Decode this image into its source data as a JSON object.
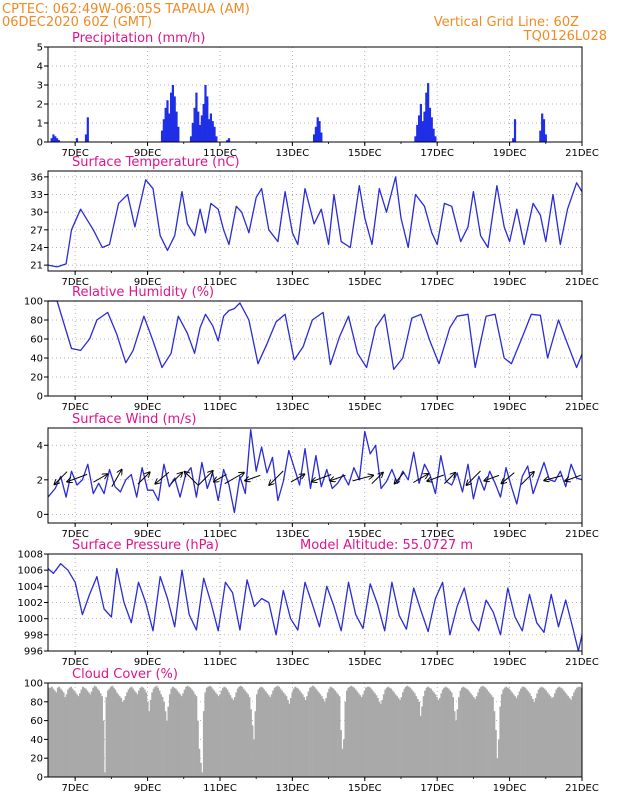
{
  "header": {
    "left_line1": "CPTEC:  062:49W-06:05S  TAPAUA (AM)",
    "left_line2": "06DEC2020 60Z (GMT)",
    "right_line1": "Vertical Grid Line: 60Z",
    "right_line2": "TQ0126L028"
  },
  "colors": {
    "line": "#2b2bd6",
    "bar": "#1f2fe6",
    "cloud": "#a9a9a9",
    "header": "#f08a24",
    "title": "#e0148c",
    "arrow": "#000000"
  },
  "chart_data": [
    {
      "id": "precip",
      "type": "bar",
      "title": "Precipitation (mm/h)",
      "ylim": [
        0,
        5
      ],
      "yticks": [
        0,
        1,
        2,
        3,
        4,
        5
      ],
      "xlim_days": [
        6.25,
        21
      ],
      "xticks": [
        "7DEC",
        "9DEC",
        "11DEC",
        "13DEC",
        "15DEC",
        "17DEC",
        "19DEC",
        "21DEC"
      ],
      "x_days": [
        6.35,
        6.4,
        6.45,
        6.5,
        6.55,
        7.05,
        7.3,
        7.35,
        9.4,
        9.45,
        9.5,
        9.55,
        9.6,
        9.65,
        9.7,
        9.75,
        9.8,
        9.85,
        10.2,
        10.25,
        10.3,
        10.35,
        10.4,
        10.45,
        10.5,
        10.55,
        10.6,
        10.65,
        10.7,
        10.75,
        10.8,
        10.85,
        10.9,
        11.2,
        11.25,
        13.6,
        13.65,
        13.7,
        13.75,
        13.8,
        16.4,
        16.45,
        16.5,
        16.55,
        16.6,
        16.65,
        16.7,
        16.75,
        16.8,
        16.85,
        16.9,
        16.95,
        19.1,
        19.15,
        19.85,
        19.9,
        19.95,
        20.0
      ],
      "values": [
        0.2,
        0.4,
        0.3,
        0.2,
        0.1,
        0.2,
        0.4,
        1.3,
        0.6,
        1.2,
        1.8,
        2.2,
        1.5,
        2.6,
        3.0,
        2.4,
        1.6,
        0.8,
        0.3,
        1.0,
        1.8,
        2.6,
        1.6,
        0.9,
        1.4,
        2.0,
        3.0,
        2.4,
        1.2,
        1.5,
        1.1,
        0.8,
        0.3,
        0.1,
        0.2,
        0.4,
        0.8,
        1.3,
        1.1,
        0.5,
        0.3,
        0.9,
        1.4,
        2.0,
        1.1,
        1.6,
        2.6,
        3.1,
        1.8,
        1.3,
        0.7,
        0.3,
        0.2,
        1.2,
        0.6,
        1.5,
        1.2,
        0.4
      ]
    },
    {
      "id": "temp",
      "type": "line",
      "title": "Surface Temperature (nC)",
      "ylim": [
        20,
        37
      ],
      "yticks": [
        21,
        24,
        27,
        30,
        33,
        36
      ],
      "xlim_days": [
        6.25,
        21
      ],
      "xticks": [
        "7DEC",
        "9DEC",
        "11DEC",
        "13DEC",
        "15DEC",
        "17DEC",
        "19DEC",
        "21DEC"
      ],
      "x_days": [
        6.25,
        6.5,
        6.75,
        6.9,
        7.15,
        7.5,
        7.75,
        7.95,
        8.2,
        8.45,
        8.65,
        8.95,
        9.15,
        9.35,
        9.55,
        9.75,
        9.95,
        10.1,
        10.3,
        10.45,
        10.6,
        10.75,
        10.95,
        11.1,
        11.25,
        11.45,
        11.6,
        11.8,
        12.0,
        12.15,
        12.35,
        12.6,
        12.8,
        13.0,
        13.15,
        13.35,
        13.6,
        13.8,
        14.0,
        14.15,
        14.35,
        14.6,
        14.85,
        15.0,
        15.2,
        15.4,
        15.6,
        15.85,
        16.0,
        16.2,
        16.4,
        16.65,
        16.85,
        17.0,
        17.2,
        17.4,
        17.65,
        17.85,
        18.0,
        18.2,
        18.4,
        18.65,
        18.85,
        19.0,
        19.2,
        19.4,
        19.65,
        19.85,
        20.0,
        20.2,
        20.4,
        20.6,
        20.85,
        21.0
      ],
      "values": [
        21.0,
        20.7,
        21.2,
        27.0,
        30.5,
        27.0,
        24.0,
        24.5,
        31.5,
        33.0,
        27.5,
        35.5,
        34.0,
        26.0,
        23.5,
        26.0,
        33.5,
        28.0,
        26.0,
        30.5,
        26.5,
        31.5,
        30.5,
        27.0,
        24.5,
        31.0,
        30.0,
        26.5,
        32.5,
        34.0,
        27.0,
        25.0,
        33.5,
        26.5,
        24.5,
        34.0,
        28.0,
        30.5,
        24.5,
        33.0,
        25.0,
        24.0,
        34.5,
        29.0,
        24.5,
        34.0,
        30.0,
        36.0,
        29.0,
        24.0,
        33.0,
        31.0,
        26.5,
        24.5,
        31.5,
        31.0,
        25.0,
        27.5,
        33.5,
        26.0,
        24.0,
        34.5,
        27.5,
        25.0,
        30.5,
        24.5,
        31.5,
        29.5,
        25.0,
        33.0,
        24.5,
        30.5,
        35.0,
        33.5
      ]
    },
    {
      "id": "rh",
      "type": "line",
      "title": "Relative Humidity (%)",
      "ylim": [
        0,
        100
      ],
      "yticks": [
        0,
        20,
        40,
        60,
        80,
        100
      ],
      "xlim_days": [
        6.25,
        21
      ],
      "xticks": [
        "7DEC",
        "9DEC",
        "11DEC",
        "13DEC",
        "15DEC",
        "17DEC",
        "19DEC",
        "21DEC"
      ],
      "x_days": [
        6.25,
        6.5,
        6.7,
        6.9,
        7.15,
        7.4,
        7.6,
        7.9,
        8.15,
        8.4,
        8.6,
        8.9,
        9.15,
        9.4,
        9.65,
        9.85,
        10.1,
        10.3,
        10.45,
        10.6,
        10.8,
        10.95,
        11.1,
        11.25,
        11.4,
        11.55,
        11.8,
        12.05,
        12.3,
        12.55,
        12.8,
        13.05,
        13.3,
        13.55,
        13.85,
        14.05,
        14.3,
        14.55,
        14.8,
        15.05,
        15.3,
        15.55,
        15.8,
        16.05,
        16.3,
        16.55,
        16.8,
        17.05,
        17.35,
        17.55,
        17.85,
        18.05,
        18.35,
        18.6,
        18.85,
        19.05,
        19.35,
        19.6,
        19.85,
        20.05,
        20.35,
        20.6,
        20.85,
        21.0
      ],
      "values": [
        100,
        100,
        75,
        50,
        48,
        60,
        80,
        88,
        65,
        35,
        48,
        84,
        58,
        30,
        45,
        84,
        66,
        45,
        72,
        86,
        74,
        58,
        84,
        90,
        92,
        98,
        80,
        34,
        55,
        78,
        86,
        38,
        52,
        80,
        88,
        33,
        62,
        84,
        45,
        30,
        72,
        86,
        28,
        40,
        82,
        86,
        58,
        34,
        72,
        84,
        86,
        30,
        84,
        86,
        40,
        34,
        62,
        86,
        85,
        40,
        80,
        55,
        30,
        44
      ]
    },
    {
      "id": "wind",
      "type": "line",
      "title": "Surface Wind (m/s)",
      "ylim": [
        -0.5,
        5
      ],
      "yticks": [
        0,
        2,
        4
      ],
      "xlim_days": [
        6.25,
        21
      ],
      "xticks": [
        "7DEC",
        "9DEC",
        "11DEC",
        "13DEC",
        "15DEC",
        "17DEC",
        "19DEC",
        "21DEC"
      ],
      "x_days": [
        6.25,
        6.45,
        6.6,
        6.75,
        6.9,
        7.05,
        7.2,
        7.35,
        7.5,
        7.65,
        7.8,
        7.95,
        8.1,
        8.25,
        8.4,
        8.55,
        8.7,
        8.85,
        9.0,
        9.15,
        9.3,
        9.45,
        9.6,
        9.75,
        9.9,
        10.05,
        10.2,
        10.35,
        10.5,
        10.65,
        10.8,
        10.95,
        11.1,
        11.25,
        11.4,
        11.55,
        11.7,
        11.85,
        12.0,
        12.15,
        12.3,
        12.45,
        12.6,
        12.75,
        12.9,
        13.05,
        13.2,
        13.35,
        13.5,
        13.65,
        13.8,
        13.95,
        14.1,
        14.25,
        14.4,
        14.55,
        14.7,
        14.85,
        15.0,
        15.15,
        15.3,
        15.45,
        15.6,
        15.75,
        15.9,
        16.05,
        16.2,
        16.35,
        16.5,
        16.65,
        16.8,
        16.95,
        17.1,
        17.25,
        17.4,
        17.55,
        17.7,
        17.85,
        18.0,
        18.15,
        18.3,
        18.45,
        18.6,
        18.75,
        18.9,
        19.05,
        19.2,
        19.35,
        19.5,
        19.65,
        19.8,
        19.95,
        20.1,
        20.25,
        20.4,
        20.55,
        20.7,
        20.85,
        21.0
      ],
      "values": [
        1.0,
        1.5,
        2.2,
        1.0,
        2.5,
        1.7,
        2.0,
        2.9,
        1.2,
        1.8,
        1.2,
        2.6,
        1.6,
        1.3,
        2.0,
        2.3,
        1.0,
        2.7,
        1.4,
        1.4,
        0.8,
        2.9,
        1.6,
        2.1,
        1.0,
        2.3,
        2.7,
        1.0,
        3.0,
        1.5,
        2.4,
        0.8,
        2.6,
        1.7,
        0.1,
        2.2,
        1.2,
        4.9,
        2.5,
        3.9,
        2.4,
        3.3,
        0.8,
        1.9,
        3.7,
        2.7,
        1.7,
        3.8,
        1.5,
        3.4,
        1.6,
        2.6,
        1.5,
        1.8,
        2.3,
        1.7,
        2.7,
        2.0,
        4.8,
        3.5,
        4.0,
        1.5,
        1.9,
        2.6,
        1.8,
        2.5,
        2.0,
        3.6,
        1.8,
        2.9,
        2.3,
        1.2,
        3.4,
        1.9,
        1.7,
        2.4,
        1.3,
        2.9,
        0.9,
        2.2,
        1.4,
        2.5,
        1.8,
        1.0,
        2.7,
        1.6,
        0.6,
        2.2,
        2.8,
        1.2,
        2.1,
        3.0,
        2.0,
        1.9,
        2.5,
        1.6,
        2.9,
        2.1,
        2.0
      ],
      "arrows_days": [
        6.6,
        7.05,
        7.7,
        8.15,
        8.9,
        9.4,
        9.8,
        10.2,
        10.6,
        11.0,
        11.4,
        11.9,
        12.55,
        13.15,
        13.8,
        14.25,
        14.95,
        15.35,
        15.95,
        16.55,
        16.95,
        17.35,
        18.0,
        18.5,
        18.95,
        19.5,
        20.2,
        20.75
      ],
      "arrow_dir_deg": [
        225,
        200,
        30,
        60,
        45,
        220,
        45,
        135,
        45,
        210,
        30,
        200,
        225,
        30,
        200,
        200,
        15,
        45,
        230,
        30,
        200,
        45,
        225,
        200,
        220,
        45,
        195,
        200
      ],
      "arrow_speed": [
        1.8,
        2.5,
        1.5,
        2.2,
        1.6,
        1.8,
        1.5,
        2.0,
        2.4,
        1.2,
        2.7,
        1.5,
        2.2,
        1.4,
        2.4,
        1.5,
        2.5,
        1.4,
        1.2,
        1.7,
        1.8,
        1.3,
        2.2,
        1.4,
        1.6,
        1.8,
        2.0,
        1.6
      ]
    },
    {
      "id": "press",
      "type": "line",
      "title": "Surface Pressure (hPa)",
      "subtitle": "Model Altitude: 55.0727 m",
      "ylim": [
        996,
        1008
      ],
      "yticks": [
        996,
        998,
        1000,
        1002,
        1004,
        1006,
        1008
      ],
      "xlim_days": [
        6.25,
        21
      ],
      "xticks": [
        "7DEC",
        "9DEC",
        "11DEC",
        "13DEC",
        "15DEC",
        "17DEC",
        "19DEC",
        "21DEC"
      ],
      "x_days": [
        6.25,
        6.4,
        6.6,
        6.8,
        7.0,
        7.2,
        7.4,
        7.6,
        7.8,
        8.0,
        8.15,
        8.35,
        8.55,
        8.75,
        8.95,
        9.15,
        9.35,
        9.55,
        9.75,
        9.95,
        10.15,
        10.35,
        10.55,
        10.75,
        10.95,
        11.15,
        11.35,
        11.55,
        11.75,
        11.95,
        12.15,
        12.35,
        12.55,
        12.75,
        12.95,
        13.15,
        13.35,
        13.55,
        13.75,
        13.95,
        14.15,
        14.35,
        14.55,
        14.75,
        14.95,
        15.15,
        15.35,
        15.55,
        15.75,
        15.95,
        16.15,
        16.35,
        16.55,
        16.75,
        16.95,
        17.15,
        17.35,
        17.55,
        17.75,
        17.95,
        18.15,
        18.35,
        18.55,
        18.75,
        18.95,
        19.15,
        19.35,
        19.55,
        19.75,
        19.95,
        20.15,
        20.35,
        20.55,
        20.75,
        20.9,
        21.0
      ],
      "values": [
        1006.2,
        1005.6,
        1006.8,
        1006.0,
        1004.5,
        1000.5,
        1003.0,
        1005.2,
        1001.2,
        1000.2,
        1006.2,
        1002.0,
        999.5,
        1004.5,
        1002.0,
        998.5,
        1005.2,
        1002.5,
        999.0,
        1006.0,
        1000.5,
        998.6,
        1005.0,
        1002.0,
        998.5,
        1004.5,
        1003.2,
        998.6,
        1004.8,
        1001.5,
        1002.5,
        1002.0,
        998.0,
        1003.5,
        1000.0,
        998.6,
        1004.5,
        1001.8,
        999.0,
        1004.0,
        1001.5,
        998.5,
        1004.5,
        1000.5,
        998.8,
        1004.3,
        1001.8,
        998.5,
        1004.5,
        1000.4,
        998.7,
        1003.8,
        1001.0,
        998.4,
        1002.5,
        1004.5,
        998.0,
        1001.5,
        1003.8,
        999.8,
        998.5,
        1002.3,
        1000.8,
        998.0,
        1003.8,
        1000.2,
        998.5,
        1003.0,
        999.5,
        998.3,
        1003.0,
        999.0,
        1002.3,
        998.8,
        996.0,
        998.0
      ]
    },
    {
      "id": "cloud",
      "type": "bar",
      "title": "Cloud Cover (%)",
      "ylim": [
        0,
        100
      ],
      "yticks": [
        0,
        20,
        40,
        60,
        80,
        100
      ],
      "xlim_days": [
        6.25,
        21
      ],
      "xticks": [
        "7DEC",
        "9DEC",
        "11DEC",
        "13DEC",
        "15DEC",
        "17DEC",
        "19DEC",
        "21DEC"
      ],
      "values": [
        95,
        95,
        96,
        94,
        92,
        90,
        95,
        96,
        94,
        92,
        90,
        85,
        88,
        93,
        95,
        96,
        94,
        92,
        90,
        88,
        86,
        89,
        93,
        96,
        95,
        94,
        92,
        90,
        88,
        91,
        95,
        97,
        96,
        94,
        92,
        89,
        86,
        60,
        5,
        85,
        92,
        94,
        96,
        97,
        95,
        93,
        90,
        88,
        86,
        84,
        80,
        82,
        86,
        90,
        93,
        95,
        96,
        94,
        92,
        90,
        88,
        92,
        95,
        96,
        95,
        93,
        90,
        80,
        70,
        82,
        90,
        94,
        96,
        97,
        95,
        92,
        88,
        85,
        80,
        70,
        60,
        75,
        88,
        94,
        96,
        95,
        94,
        92,
        90,
        88,
        86,
        89,
        93,
        96,
        97,
        96,
        95,
        93,
        91,
        88,
        86,
        60,
        30,
        15,
        5,
        70,
        90,
        95,
        96,
        97,
        96,
        94,
        92,
        90,
        88,
        86,
        88,
        92,
        95,
        96,
        95,
        93,
        90,
        87,
        84,
        82,
        85,
        90,
        94,
        96,
        97,
        96,
        94,
        92,
        90,
        88,
        85,
        72,
        55,
        40,
        70,
        88,
        93,
        95,
        96,
        95,
        93,
        91,
        89,
        87,
        85,
        88,
        92,
        95,
        96,
        97,
        96,
        94,
        92,
        90,
        88,
        86,
        82,
        78,
        84,
        90,
        94,
        96,
        95,
        94,
        92,
        90,
        88,
        85,
        82,
        86,
        91,
        95,
        96,
        97,
        96,
        94,
        92,
        90,
        88,
        86,
        83,
        80,
        84,
        90,
        94,
        96,
        95,
        94,
        92,
        90,
        88,
        86,
        50,
        30,
        40,
        80,
        92,
        95,
        96,
        97,
        96,
        95,
        93,
        91,
        89,
        87,
        85,
        88,
        92,
        95,
        96,
        96,
        95,
        93,
        91,
        89,
        87,
        84,
        80,
        78,
        82,
        88,
        93,
        95,
        96,
        95,
        94,
        92,
        90,
        88,
        86,
        84,
        82,
        85,
        90,
        94,
        96,
        97,
        96,
        95,
        93,
        91,
        89,
        86,
        83,
        80,
        65,
        75,
        86,
        92,
        95,
        96,
        95,
        94,
        92,
        90,
        88,
        85,
        82,
        84,
        89,
        93,
        95,
        96,
        95,
        94,
        92,
        90,
        85,
        70,
        60,
        72,
        85,
        92,
        95,
        96,
        95,
        94,
        93,
        91,
        89,
        87,
        85,
        83,
        86,
        90,
        94,
        96,
        97,
        96,
        95,
        93,
        91,
        89,
        87,
        85,
        70,
        50,
        20,
        40,
        75,
        88,
        93,
        95,
        96,
        95,
        94,
        92,
        90,
        88,
        86,
        84,
        87,
        91,
        94,
        96,
        96,
        95,
        93,
        91,
        89,
        86,
        83,
        80,
        84,
        89,
        93,
        95,
        96,
        95,
        94,
        92,
        90,
        88,
        86,
        84,
        85,
        89,
        93,
        95,
        96,
        95,
        94,
        92,
        90,
        88,
        86,
        84,
        82,
        86,
        90,
        93,
        95,
        96,
        96,
        95
      ]
    }
  ]
}
